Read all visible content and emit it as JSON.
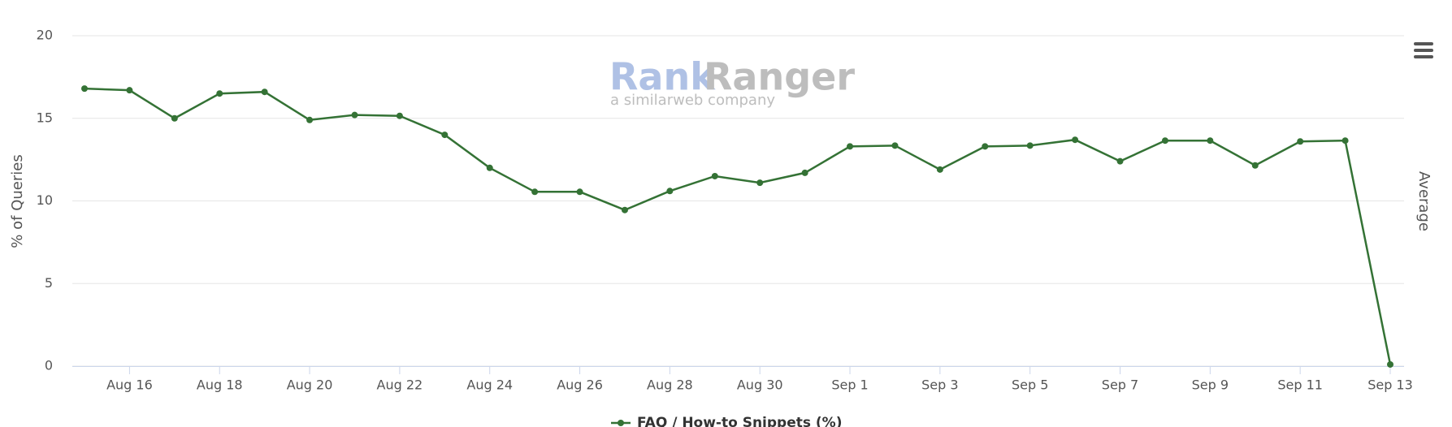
{
  "chart_data": {
    "type": "line",
    "y_label": "% of Queries",
    "y2_label": "Average",
    "watermark": {
      "brand_left": "Rank",
      "brand_right": "Ranger",
      "tagline": "a similarweb company"
    },
    "categories": [
      null,
      "Aug 16",
      null,
      "Aug 18",
      null,
      "Aug 20",
      null,
      "Aug 22",
      null,
      "Aug 24",
      null,
      "Aug 26",
      null,
      "Aug 28",
      null,
      "Aug 30",
      null,
      "Sep 1",
      null,
      "Sep 3",
      null,
      "Sep 5",
      null,
      "Sep 7",
      null,
      "Sep 9",
      null,
      "Sep 11",
      null,
      "Sep 13"
    ],
    "series": [
      {
        "name": "FAQ / How-to Snippets (%)",
        "color": "#347235",
        "values": [
          16.8,
          16.7,
          15.0,
          16.5,
          16.6,
          14.9,
          15.2,
          15.15,
          14.0,
          12.0,
          10.55,
          10.55,
          9.45,
          10.6,
          11.5,
          11.1,
          11.7,
          13.3,
          13.35,
          11.9,
          13.3,
          13.35,
          13.7,
          12.4,
          13.65,
          13.65,
          12.15,
          13.6,
          13.65,
          0.1
        ]
      }
    ],
    "ylim": [
      0,
      20
    ],
    "yticks": [
      0,
      5,
      10,
      15,
      20
    ],
    "grid": true,
    "legend": "bottom"
  }
}
